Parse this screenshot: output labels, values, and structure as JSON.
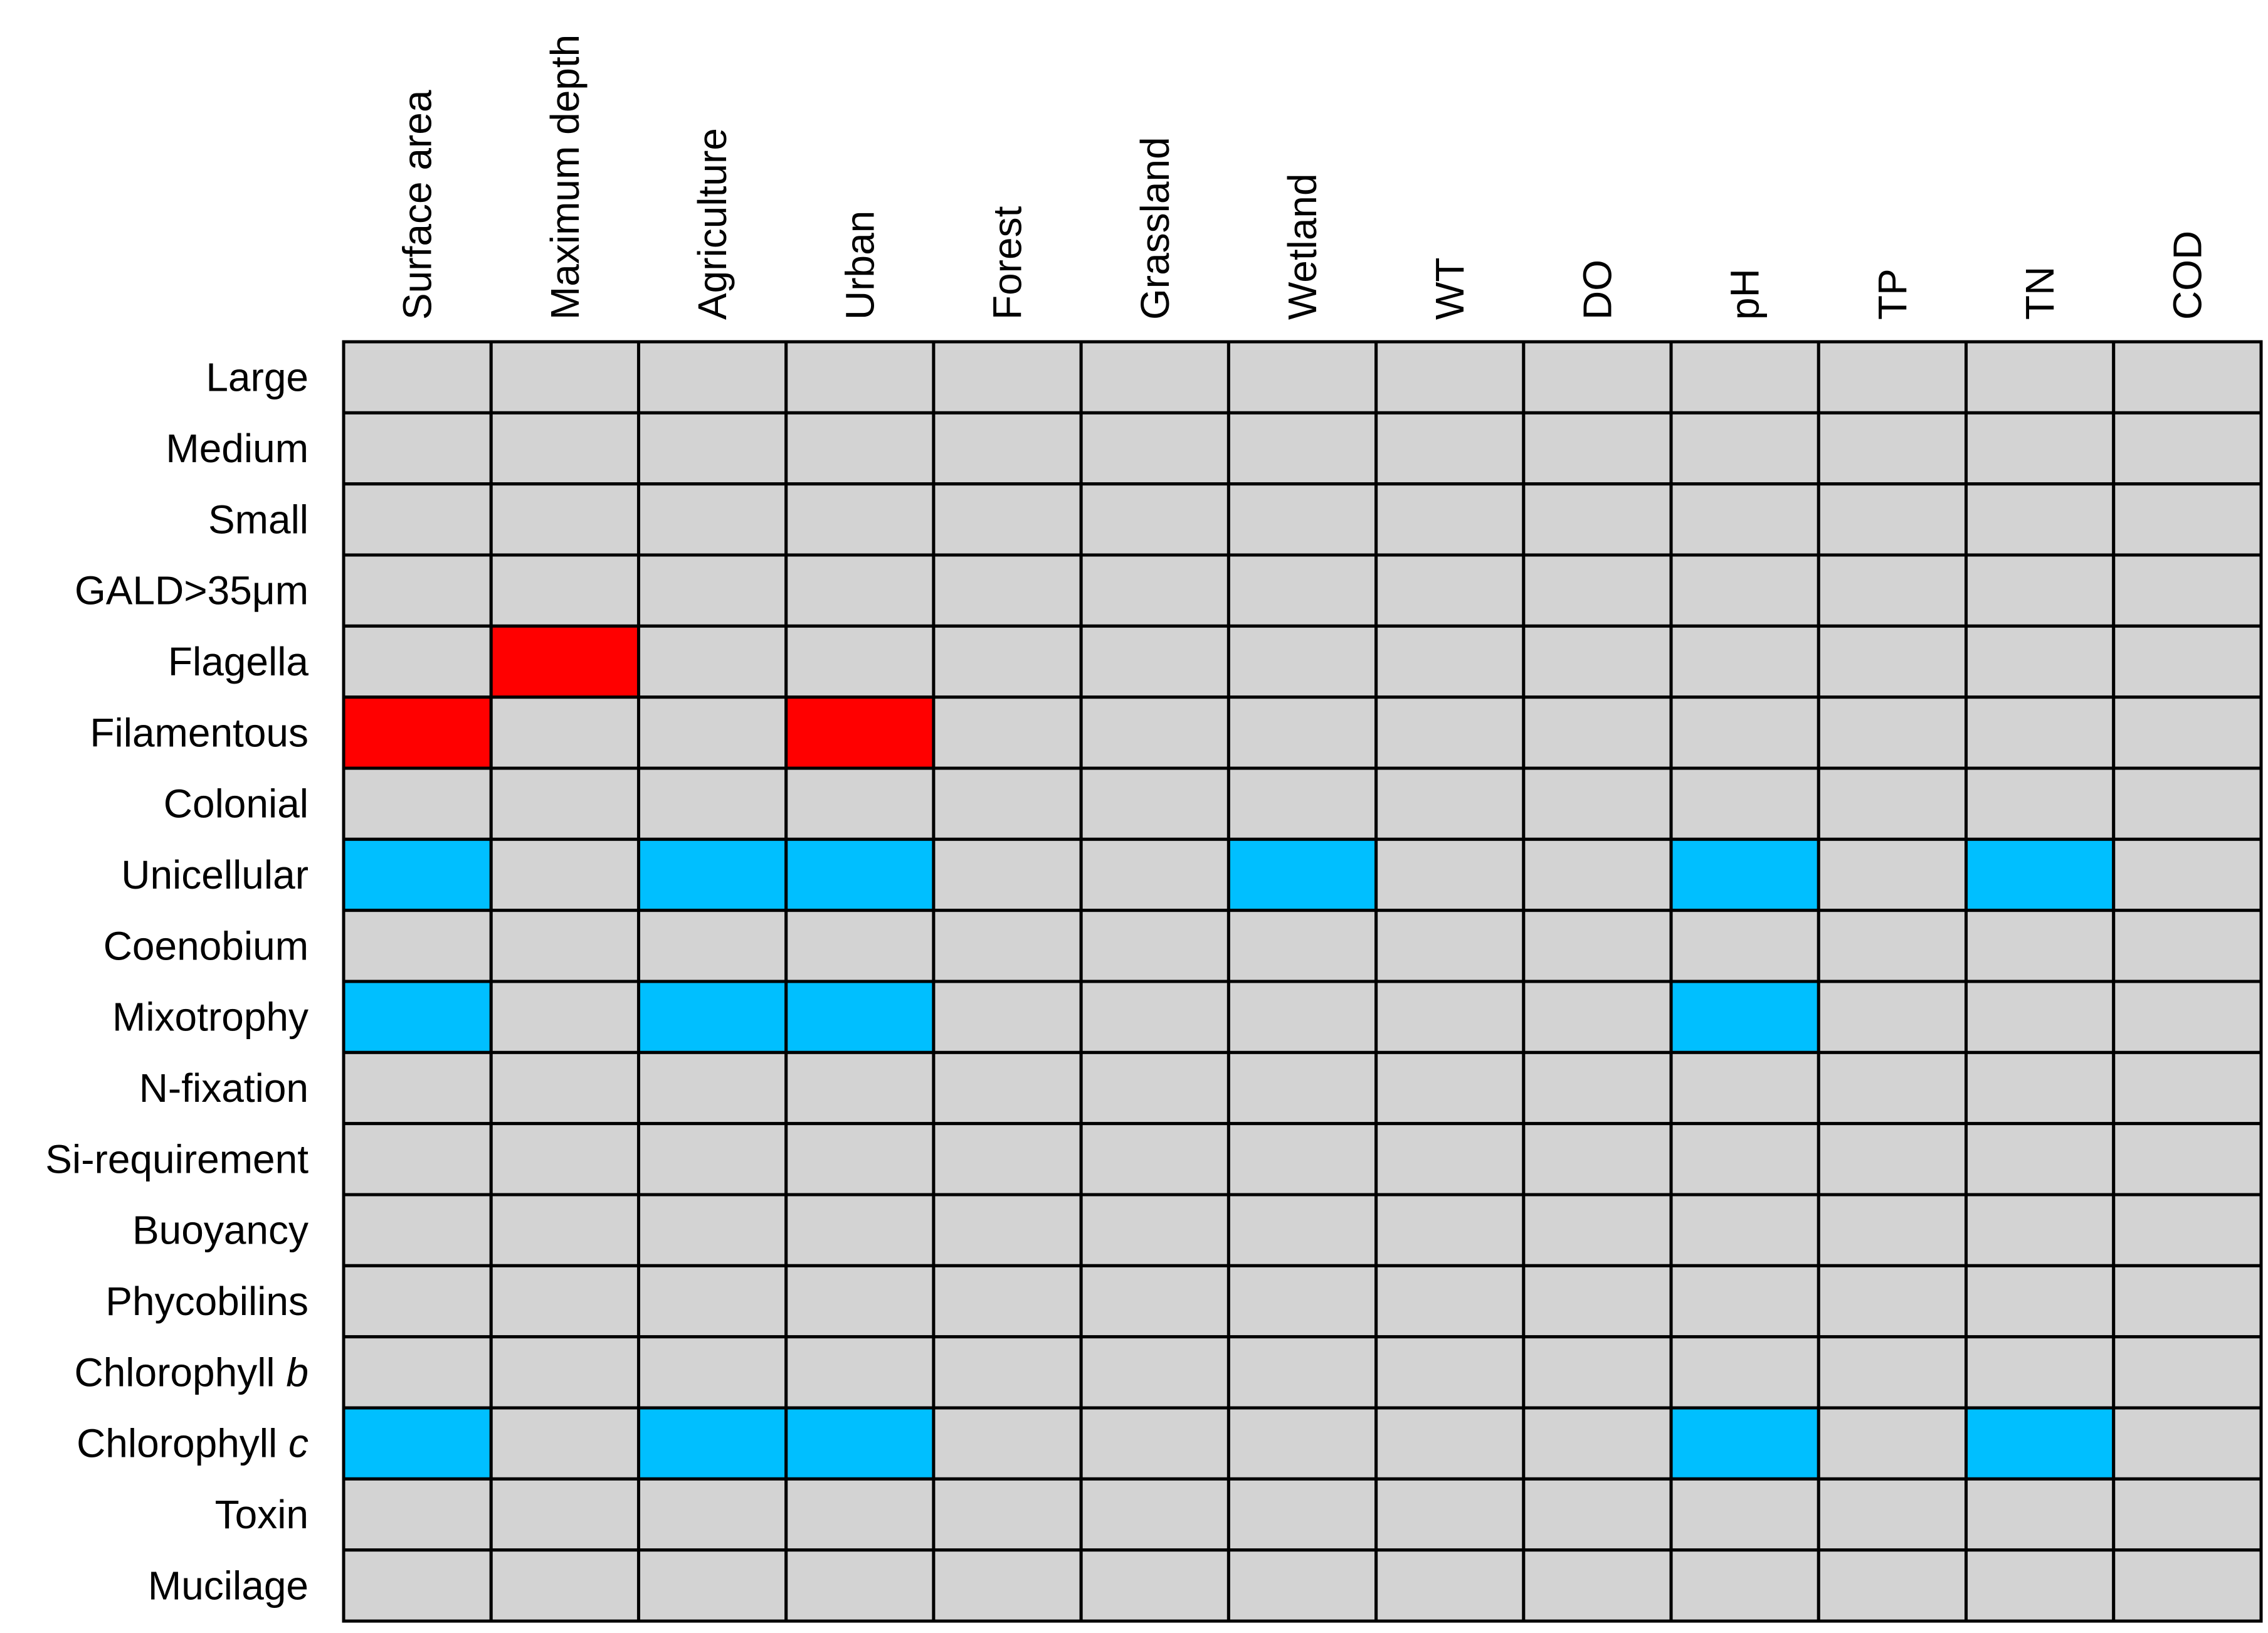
{
  "chart_data": {
    "type": "heatmap",
    "columns": [
      "Surface area",
      "Maximum depth",
      "Agriculture",
      "Urban",
      "Forest",
      "Grassland",
      "Wetland",
      "WT",
      "DO",
      "pH",
      "TP",
      "TN",
      "COD"
    ],
    "rows": [
      {
        "label": "Large"
      },
      {
        "label": "Medium"
      },
      {
        "label": "Small"
      },
      {
        "label": "GALD>35μm"
      },
      {
        "label": "Flagella"
      },
      {
        "label": "Filamentous"
      },
      {
        "label": "Colonial"
      },
      {
        "label": "Unicellular"
      },
      {
        "label": "Coenobium"
      },
      {
        "label": "Mixotrophy"
      },
      {
        "label": "N-fixation"
      },
      {
        "label": "Si-requirement"
      },
      {
        "label": "Buoyancy"
      },
      {
        "label": "Phycobilins"
      },
      {
        "label": "Chlorophyll ",
        "italic_suffix": "b"
      },
      {
        "label": "Chlorophyll ",
        "italic_suffix": "c"
      },
      {
        "label": "Toxin"
      },
      {
        "label": "Mucilage"
      }
    ],
    "values": [
      [
        0,
        0,
        0,
        0,
        0,
        0,
        0,
        0,
        0,
        0,
        0,
        0,
        0
      ],
      [
        0,
        0,
        0,
        0,
        0,
        0,
        0,
        0,
        0,
        0,
        0,
        0,
        0
      ],
      [
        0,
        0,
        0,
        0,
        0,
        0,
        0,
        0,
        0,
        0,
        0,
        0,
        0
      ],
      [
        0,
        0,
        0,
        0,
        0,
        0,
        0,
        0,
        0,
        0,
        0,
        0,
        0
      ],
      [
        0,
        1,
        0,
        0,
        0,
        0,
        0,
        0,
        0,
        0,
        0,
        0,
        0
      ],
      [
        1,
        0,
        0,
        1,
        0,
        0,
        0,
        0,
        0,
        0,
        0,
        0,
        0
      ],
      [
        0,
        0,
        0,
        0,
        0,
        0,
        0,
        0,
        0,
        0,
        0,
        0,
        0
      ],
      [
        -1,
        0,
        -1,
        -1,
        0,
        0,
        -1,
        0,
        0,
        -1,
        0,
        -1,
        0
      ],
      [
        0,
        0,
        0,
        0,
        0,
        0,
        0,
        0,
        0,
        0,
        0,
        0,
        0
      ],
      [
        -1,
        0,
        -1,
        -1,
        0,
        0,
        0,
        0,
        0,
        -1,
        0,
        0,
        0
      ],
      [
        0,
        0,
        0,
        0,
        0,
        0,
        0,
        0,
        0,
        0,
        0,
        0,
        0
      ],
      [
        0,
        0,
        0,
        0,
        0,
        0,
        0,
        0,
        0,
        0,
        0,
        0,
        0
      ],
      [
        0,
        0,
        0,
        0,
        0,
        0,
        0,
        0,
        0,
        0,
        0,
        0,
        0
      ],
      [
        0,
        0,
        0,
        0,
        0,
        0,
        0,
        0,
        0,
        0,
        0,
        0,
        0
      ],
      [
        0,
        0,
        0,
        0,
        0,
        0,
        0,
        0,
        0,
        0,
        0,
        0,
        0
      ],
      [
        -1,
        0,
        -1,
        -1,
        0,
        0,
        0,
        0,
        0,
        -1,
        0,
        -1,
        0
      ],
      [
        0,
        0,
        0,
        0,
        0,
        0,
        0,
        0,
        0,
        0,
        0,
        0,
        0
      ],
      [
        0,
        0,
        0,
        0,
        0,
        0,
        0,
        0,
        0,
        0,
        0,
        0,
        0
      ]
    ],
    "colors": {
      "1": "#ff0000",
      "0": "#d3d3d3",
      "-1": "#00bfff"
    },
    "grid_color": "#000000",
    "title": "",
    "xlabel": "",
    "ylabel": "",
    "legend": "none",
    "grid": true
  }
}
